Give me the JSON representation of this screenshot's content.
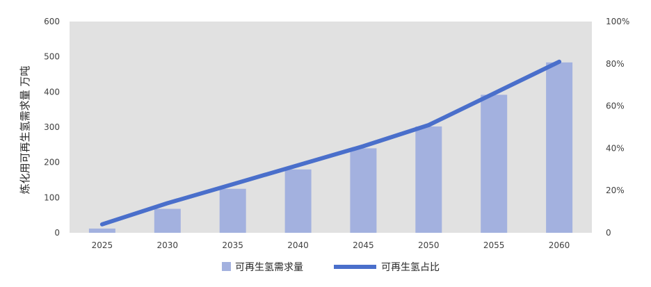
{
  "chart_data": {
    "type": "bar",
    "categories": [
      "2025",
      "2030",
      "2035",
      "2040",
      "2045",
      "2050",
      "2055",
      "2060"
    ],
    "series": [
      {
        "name": "可再生氢需求量",
        "type": "bar",
        "axis": "left",
        "color": "#a3b1df",
        "values": [
          12,
          68,
          125,
          180,
          240,
          302,
          392,
          484
        ]
      },
      {
        "name": "可再生氢占比",
        "type": "line",
        "axis": "right",
        "color": "#4a6fcb",
        "values": [
          0.04,
          0.14,
          0.23,
          0.32,
          0.41,
          0.51,
          0.66,
          0.81
        ]
      }
    ],
    "ylabel": "炼化用可再生氢需求量 万吨",
    "ylim": [
      0,
      600
    ],
    "y_ticks": [
      "0",
      "100",
      "200",
      "300",
      "400",
      "500",
      "600"
    ],
    "y2lim": [
      0,
      1
    ],
    "y2_ticks": [
      "0",
      "20%",
      "40%",
      "60%",
      "80%",
      "100%"
    ],
    "plot_background": "#e1e1e1",
    "grid": false,
    "legend_position": "bottom"
  }
}
